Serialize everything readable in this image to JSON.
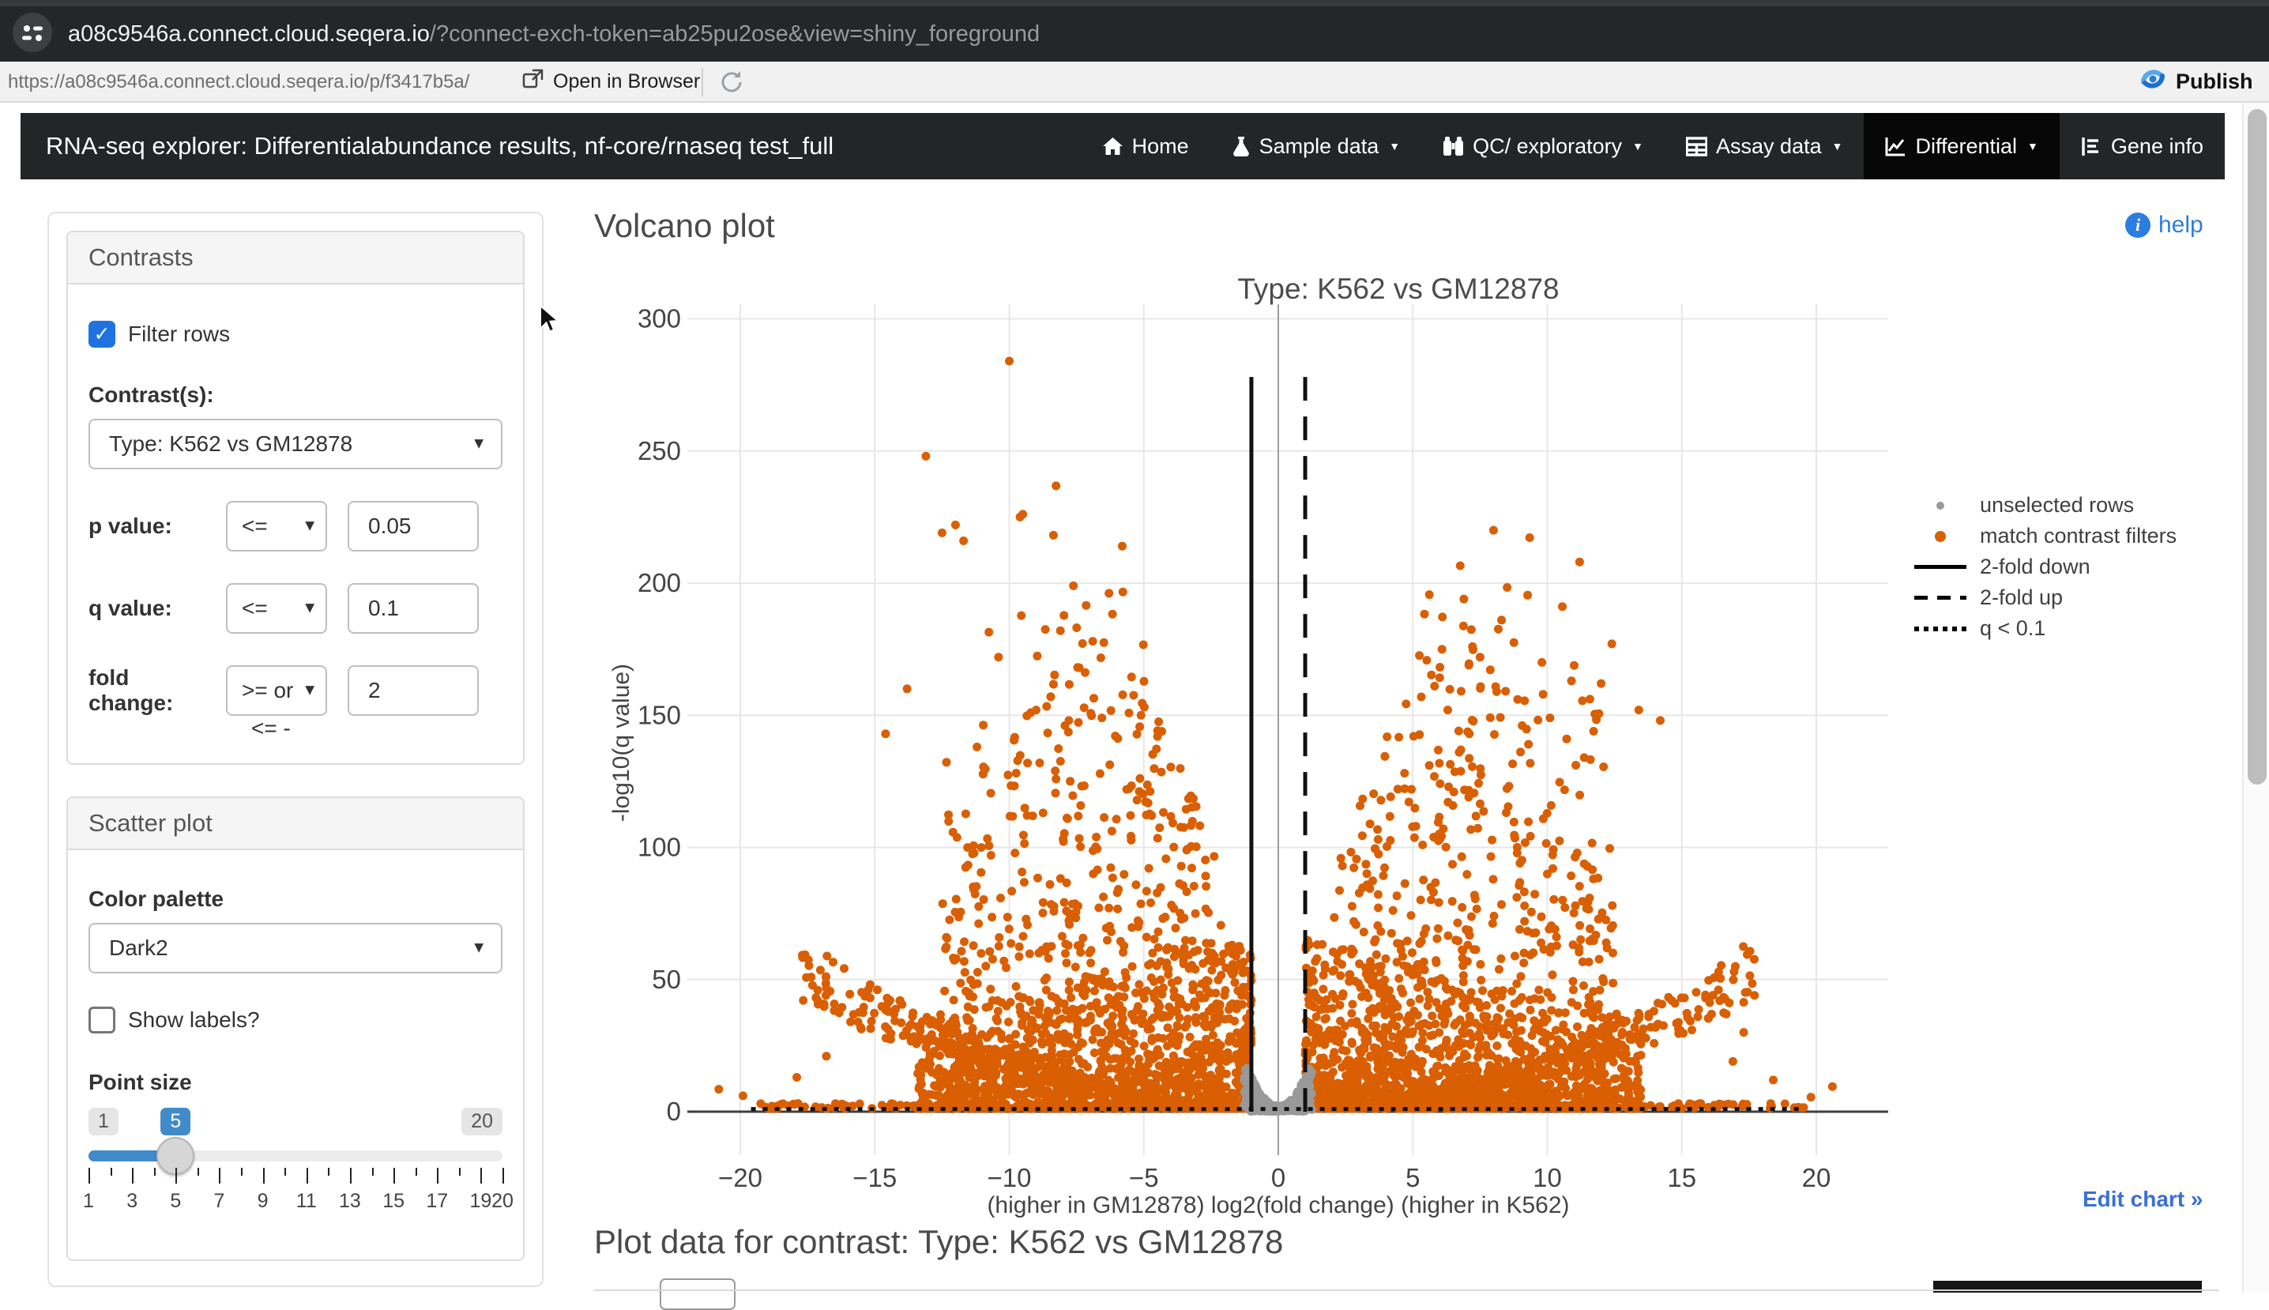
{
  "browser": {
    "tab": {
      "host": "a08c9546a.connect.cloud.seqera.io",
      "query": "/?connect-exch-token=ab25pu2ose&view=shiny_foreground"
    },
    "toolbar": {
      "url": "https://a08c9546a.connect.cloud.seqera.io/p/f3417b5a/",
      "open_in_browser": "Open in Browser",
      "publish": "Publish"
    }
  },
  "navbar": {
    "brand": "RNA-seq explorer: Differentialabundance results, nf-core/rnaseq test_full",
    "items": [
      {
        "label": "Home",
        "icon": "home-icon",
        "caret": false,
        "active": false
      },
      {
        "label": "Sample data",
        "icon": "flask-icon",
        "caret": true,
        "active": false
      },
      {
        "label": "QC/ exploratory",
        "icon": "binoculars-icon",
        "caret": true,
        "active": false
      },
      {
        "label": "Assay data",
        "icon": "table-icon",
        "caret": true,
        "active": false
      },
      {
        "label": "Differential",
        "icon": "chart-line-icon",
        "caret": true,
        "active": true
      },
      {
        "label": "Gene info",
        "icon": "list-icon",
        "caret": false,
        "active": false
      }
    ]
  },
  "sidebar": {
    "contrasts": {
      "title": "Contrasts",
      "filter_rows_label": "Filter rows",
      "filter_rows_checked": true,
      "check_glyph": "✓",
      "contrast_label": "Contrast(s):",
      "contrast_value": "Type: K562 vs GM12878",
      "p_label": "p value:",
      "p_op": "<=",
      "p_value": "0.05",
      "q_label": "q value:",
      "q_op": "<=",
      "q_value": "0.1",
      "fc_label": "fold change:",
      "fc_op": ">= or",
      "fc_op_overflow": "<= -",
      "fc_value": "2"
    },
    "scatter": {
      "title": "Scatter plot",
      "palette_label": "Color palette",
      "palette_value": "Dark2",
      "show_labels_label": "Show labels?",
      "show_labels_checked": false,
      "point_size_label": "Point size",
      "slider": {
        "min": "1",
        "value": "5",
        "max": "20",
        "min_v": 1,
        "max_v": 20,
        "value_v": 5,
        "tick_labels": [
          1,
          3,
          5,
          7,
          9,
          11,
          13,
          15,
          17,
          19,
          20
        ]
      }
    }
  },
  "main": {
    "heading": "Volcano plot",
    "help": "help",
    "edit_chart": "Edit chart »",
    "plot_data_heading": "Plot data for contrast: Type: K562 vs GM12878"
  },
  "chart_data": {
    "type": "scatter",
    "title": "Type: K562 vs GM12878",
    "xlabel": "(higher in GM12878)  log2(fold change)  (higher in K562)",
    "ylabel": "-log10(q value)",
    "xlim": [
      -22,
      22
    ],
    "ylim": [
      -16,
      306
    ],
    "x_ticks": [
      -20,
      -15,
      -10,
      -5,
      0,
      5,
      10,
      15,
      20
    ],
    "y_ticks": [
      0,
      50,
      100,
      150,
      200,
      250,
      300
    ],
    "grid": true,
    "legend_position": "right",
    "point_colors": {
      "selected": "#D95F02",
      "unselected": "#999999"
    },
    "legend": [
      {
        "label": "unselected rows",
        "marker": "dot-grey"
      },
      {
        "label": "match contrast filters",
        "marker": "dot-orange"
      },
      {
        "label": "2-fold down",
        "marker": "line-solid"
      },
      {
        "label": "2-fold up",
        "marker": "line-dashed"
      },
      {
        "label": "q < 0.1",
        "marker": "line-dotted"
      }
    ],
    "lines": [
      {
        "name": "2-fold down",
        "style": "solid",
        "orientation": "vertical",
        "x": -1,
        "y_extent": [
          0,
          278
        ]
      },
      {
        "name": "2-fold up",
        "style": "dashed",
        "orientation": "vertical",
        "x": 1,
        "y_extent": [
          0,
          278
        ]
      },
      {
        "name": "q < 0.1",
        "style": "dotted",
        "orientation": "horizontal",
        "y": 1,
        "x_extent": [
          -19.6,
          19.6
        ]
      }
    ],
    "thresholds": {
      "p_value": 0.05,
      "q_value": 0.1,
      "fold_change": 2
    },
    "notable_points": [
      [
        -10,
        284
      ],
      [
        -13.1,
        248
      ],
      [
        -9.6,
        225
      ],
      [
        -12,
        222
      ],
      [
        -12.5,
        219
      ],
      [
        -11.7,
        216
      ],
      [
        -5.8,
        214
      ],
      [
        8,
        220
      ],
      [
        11.2,
        208
      ],
      [
        6.9,
        194
      ],
      [
        8.3,
        186
      ],
      [
        -8.1,
        182
      ],
      [
        12.4,
        177
      ],
      [
        -6.9,
        178
      ],
      [
        -10.4,
        172
      ],
      [
        7.5,
        172
      ],
      [
        9.8,
        170
      ],
      [
        -7.4,
        168
      ],
      [
        10.9,
        163
      ],
      [
        12,
        162
      ],
      [
        -13.8,
        160
      ],
      [
        8.9,
        156
      ],
      [
        -9,
        152
      ],
      [
        13.4,
        152
      ],
      [
        6.3,
        152
      ],
      [
        -5.1,
        150
      ],
      [
        10.1,
        149
      ],
      [
        -14.6,
        143
      ],
      [
        14.2,
        148
      ],
      [
        7.1,
        143
      ],
      [
        -11.2,
        138
      ],
      [
        9.3,
        139
      ],
      [
        -20.8,
        8.5
      ],
      [
        20.6,
        9.5
      ],
      [
        -19.9,
        6
      ],
      [
        19.8,
        5.5
      ],
      [
        -17.9,
        13
      ],
      [
        18.4,
        12
      ],
      [
        16.9,
        19
      ],
      [
        -16.8,
        21
      ],
      [
        -15.9,
        34
      ],
      [
        17.3,
        30
      ]
    ],
    "cloud": {
      "seed": 42,
      "per_side": {
        "body": 1250,
        "mid": 560,
        "arc": 290,
        "strip": 140,
        "high": 115
      },
      "grey_center": 330,
      "grey_strip": 70
    }
  }
}
